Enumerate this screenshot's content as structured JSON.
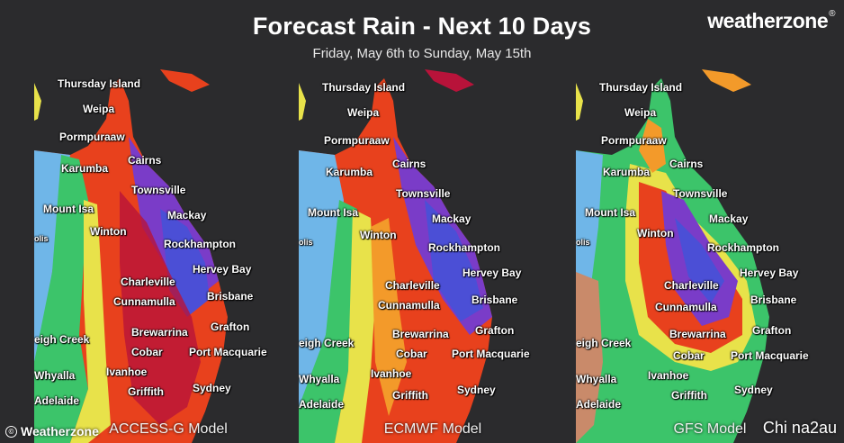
{
  "header": {
    "title": "Forecast Rain - Next 10 Days",
    "subtitle": "Friday, May 6th to Sunday, May 15th",
    "logo": "weatherzone"
  },
  "footer": {
    "brand": "Weatherzone",
    "watermark": "Chi na2au"
  },
  "colors": {
    "background": "#2b2b2d",
    "rain_scale": [
      "#6fb6e8",
      "#3cc46a",
      "#e8e24a",
      "#f39a2a",
      "#e8411d",
      "#b8133a",
      "#7a3cc8",
      "#4b4fd6"
    ]
  },
  "panels": [
    {
      "model": "ACCESS-G Model",
      "places": [
        "Thursday Island",
        "Weipa",
        "Pormpuraaw",
        "Cairns",
        "Karumba",
        "Townsville",
        "Mount Isa",
        "Mackay",
        "olis",
        "Winton",
        "Rockhampton",
        "Hervey Bay",
        "Charleville",
        "Brisbane",
        "Cunnamulla",
        "Grafton",
        "Brewarrina",
        "Cobar",
        "Port Macquarie",
        "eigh Creek",
        "Ivanhoe",
        "Whyalla",
        "Griffith",
        "Sydney",
        "Adelaide"
      ]
    },
    {
      "model": "ECMWF Model",
      "places": [
        "Thursday Island",
        "Weipa",
        "Pormpuraaw",
        "Cairns",
        "Karumba",
        "Townsville",
        "Mount Isa",
        "Mackay",
        "olis",
        "Winton",
        "Rockhampton",
        "Hervey Bay",
        "Charleville",
        "Brisbane",
        "Cunnamulla",
        "Grafton",
        "Brewarrina",
        "Port Macquarie",
        "Cobar",
        "eigh Creek",
        "Ivanhoe",
        "Whyalla",
        "Griffith",
        "Sydney",
        "Adelaide"
      ]
    },
    {
      "model": "GFS Model",
      "places": [
        "Thursday Island",
        "Weipa",
        "Pormpuraaw",
        "Cairns",
        "Karumba",
        "Townsville",
        "Mount Isa",
        "Mackay",
        "olis",
        "Winton",
        "Rockhampton",
        "Hervey Bay",
        "Charleville",
        "Brisbane",
        "Cunnamulla",
        "Grafton",
        "Brewarrina",
        "Cobar",
        "Port Macquarie",
        "eigh Creek",
        "Ivanhoe",
        "Whyalla",
        "Griffith",
        "Sydney",
        "Adelaide"
      ]
    }
  ]
}
